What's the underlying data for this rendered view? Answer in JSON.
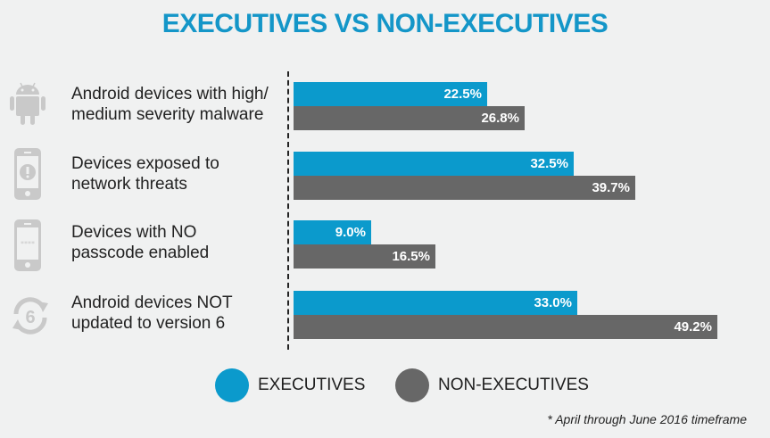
{
  "chart_data": {
    "type": "bar",
    "orientation": "horizontal",
    "title": "EXECUTIVES VS NON-EXECUTIVES",
    "categories": [
      "Android devices with high/ medium severity malware",
      "Devices exposed to network threats",
      "Devices with NO passcode enabled",
      "Android devices NOT updated to version 6"
    ],
    "category_lines": [
      [
        "Android devices with high/",
        "medium severity malware"
      ],
      [
        "Devices exposed to",
        "network threats"
      ],
      [
        "Devices with NO",
        "passcode enabled"
      ],
      [
        "Android devices NOT",
        "updated to version 6"
      ]
    ],
    "category_icons": [
      "android-icon",
      "phone-alert-icon",
      "phone-passcode-icon",
      "update-version-6-icon"
    ],
    "series": [
      {
        "name": "EXECUTIVES",
        "color": "#0b9acc",
        "values": [
          22.5,
          32.5,
          9.0,
          33.0
        ],
        "labels": [
          "22.5%",
          "32.5%",
          "9.0%",
          "33.0%"
        ]
      },
      {
        "name": "NON-EXECUTIVES",
        "color": "#676767",
        "values": [
          26.8,
          39.7,
          16.5,
          49.2
        ],
        "labels": [
          "26.8%",
          "39.7%",
          "16.5%",
          "49.2%"
        ]
      }
    ],
    "unit": "%",
    "xlabel": "",
    "ylabel": "",
    "grid": false,
    "legend_position": "bottom",
    "footnote": "* April through June 2016 timeframe"
  }
}
